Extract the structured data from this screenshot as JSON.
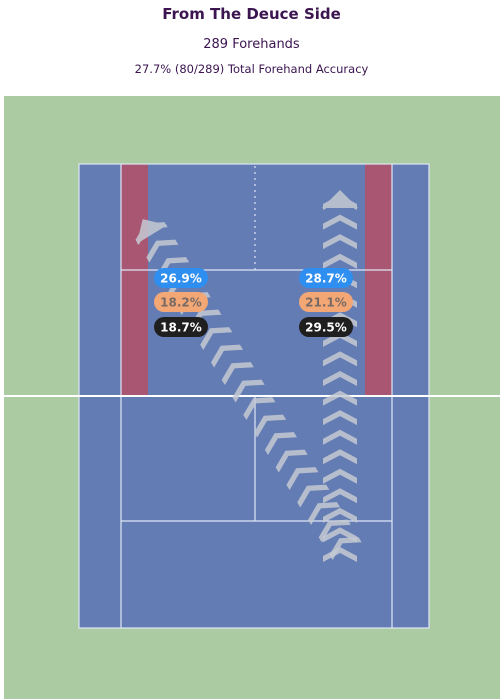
{
  "header": {
    "title": "From The Deuce Side",
    "subtitle": "289 Forehands",
    "accuracy": "27.7% (80/289) Total Forehand Accuracy"
  },
  "colors": {
    "surround": "#abcba3",
    "court": "#647cb4",
    "lines": "#dfe6f5",
    "target_zone": "#b0526b",
    "arrow": "#c5cad3",
    "badge_blue": "#2f8ff0",
    "badge_orange": "#f2a774",
    "badge_black": "#1f1f1f"
  },
  "chart_data": {
    "type": "table",
    "zones": [
      {
        "side": "left",
        "values": [
          {
            "label": "26.9%",
            "value": 26.9,
            "color": "badge_blue"
          },
          {
            "label": "18.2%",
            "value": 18.2,
            "color": "badge_orange"
          },
          {
            "label": "18.7%",
            "value": 18.7,
            "color": "badge_black"
          }
        ]
      },
      {
        "side": "right",
        "values": [
          {
            "label": "28.7%",
            "value": 28.7,
            "color": "badge_blue"
          },
          {
            "label": "21.1%",
            "value": 21.1,
            "color": "badge_orange"
          },
          {
            "label": "29.5%",
            "value": 29.5,
            "color": "badge_black"
          }
        ]
      }
    ]
  }
}
